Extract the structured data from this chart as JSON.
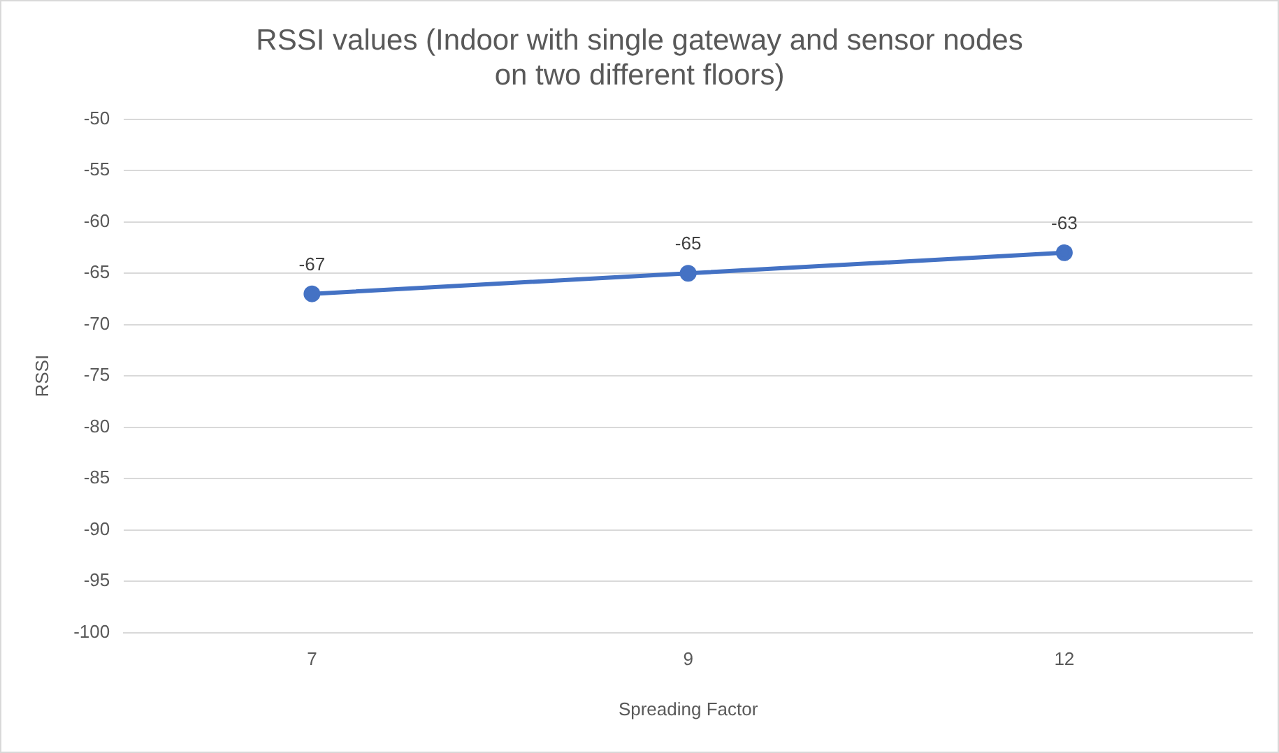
{
  "chart_data": {
    "type": "line",
    "title": "RSSI values (Indoor with single gateway and sensor nodes on two different floors)",
    "xlabel": "Spreading Factor",
    "ylabel": "RSSI",
    "categories": [
      "7",
      "9",
      "12"
    ],
    "series": [
      {
        "color": "#4472c4",
        "values": [
          -67,
          -65,
          -63
        ]
      }
    ],
    "ylim": [
      -100,
      -50
    ],
    "yticks": [
      -100,
      -95,
      -90,
      -85,
      -80,
      -75,
      -70,
      -65,
      -60,
      -55,
      -50
    ],
    "grid": "y",
    "legend": false,
    "marker": "circle",
    "line_style": "solid",
    "data_labels": true
  }
}
